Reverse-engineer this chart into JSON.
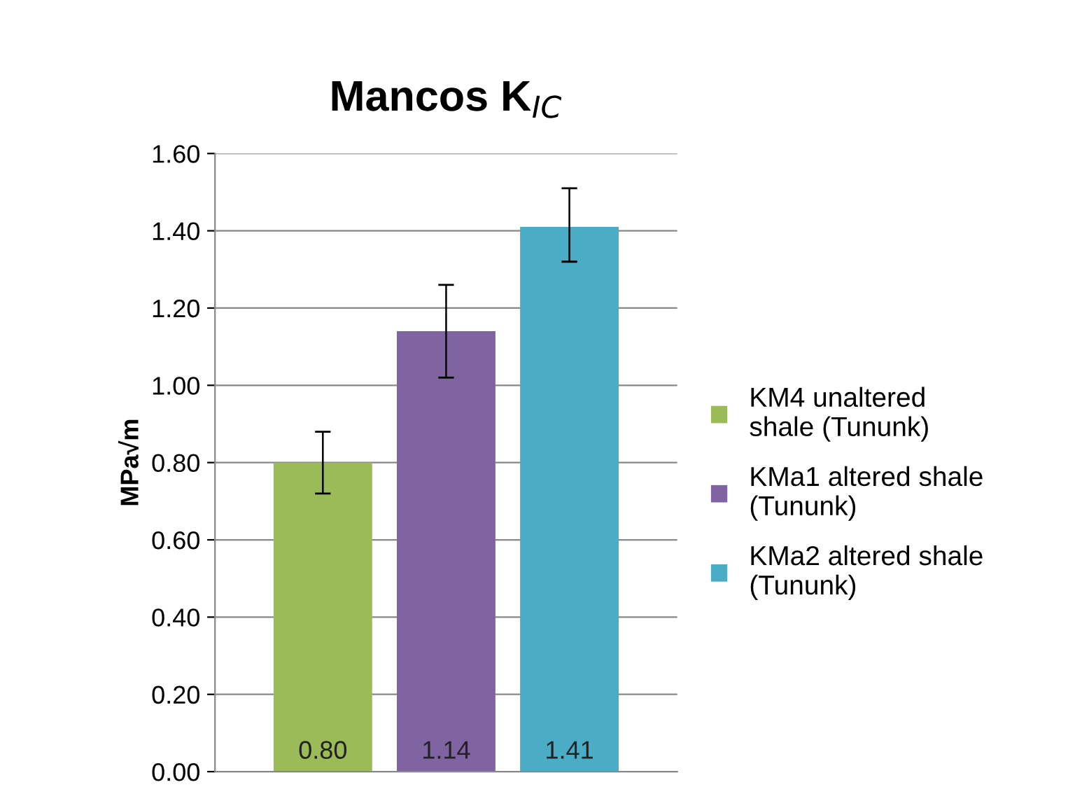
{
  "chart_data": {
    "type": "bar",
    "title": "Mancos K$_{IC}$",
    "ylabel": "MPa√m",
    "categories": [
      null
    ],
    "series": [
      {
        "name": "KM4 unaltered\nshale (Tununk)",
        "color": "#9bbb59",
        "values": [
          0.8
        ],
        "errors": [
          [
            0.72,
            0.88
          ]
        ],
        "value_labels": [
          "0.80"
        ]
      },
      {
        "name": "KMa1 altered shale\n(Tununk)",
        "color": "#8064a2",
        "values": [
          1.14
        ],
        "errors": [
          [
            1.02,
            1.26
          ]
        ],
        "value_labels": [
          "1.14"
        ]
      },
      {
        "name": "KMa2 altered shale\n(Tununk)",
        "color": "#4bacc6",
        "values": [
          1.41
        ],
        "errors": [
          [
            1.32,
            1.51
          ]
        ],
        "value_labels": [
          "1.41"
        ]
      }
    ],
    "ylim": [
      0,
      1.6
    ],
    "yticks": [
      {
        "value": 0,
        "label": "0.00"
      },
      {
        "value": 0.2,
        "label": "0.20"
      },
      {
        "value": 0.4,
        "label": "0.40"
      },
      {
        "value": 0.6,
        "label": "0.60"
      },
      {
        "value": 0.8,
        "label": "0.80"
      },
      {
        "value": 1.0,
        "label": "1.00"
      },
      {
        "value": 1.2,
        "label": "1.20"
      },
      {
        "value": 1.4,
        "label": "1.40"
      },
      {
        "value": 1.6,
        "label": "1.60"
      }
    ],
    "grid": "y",
    "legend": "right",
    "tick_labels": "y"
  }
}
